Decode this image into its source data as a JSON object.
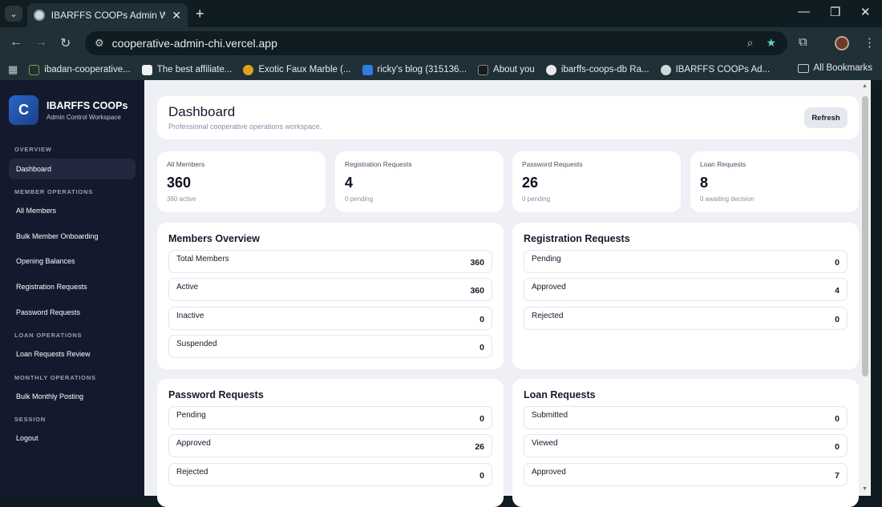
{
  "browser": {
    "tab_title": "IBARFFS COOPs Admin Workspace",
    "url": "cooperative-admin-chi.vercel.app",
    "bookmarks": [
      {
        "label": "ibadan-cooperative...",
        "color": "#2b2b2b"
      },
      {
        "label": "The best affiliate...",
        "color": "#f0f0f0"
      },
      {
        "label": "Exotic Faux Marble (...",
        "color": "#e0a21a"
      },
      {
        "label": "ricky's blog (315136...",
        "color": "#2f7de1"
      },
      {
        "label": "About you",
        "color": "#1a1a1a"
      },
      {
        "label": "ibarffs-coops-db Ra...",
        "color": "#e8e8e8"
      },
      {
        "label": "IBARFFS COOPs Ad...",
        "color": "#cfd8dc"
      }
    ],
    "all_bookmarks": "All Bookmarks"
  },
  "sidebar": {
    "logo_letter": "C",
    "brand": "IBARFFS COOPs",
    "brand_sub": "Admin Control Workspace",
    "sections": {
      "overview": "OVERVIEW",
      "member_ops": "MEMBER OPERATIONS",
      "loan_ops": "LOAN OPERATIONS",
      "monthly_ops": "MONTHLY OPERATIONS",
      "session": "SESSION"
    },
    "items": {
      "dashboard": "Dashboard",
      "all_members": "All Members",
      "bulk_onboarding": "Bulk Member Onboarding",
      "opening_balances": "Opening Balances",
      "registration_requests": "Registration Requests",
      "password_requests": "Password Requests",
      "loan_requests_review": "Loan Requests Review",
      "bulk_monthly_posting": "Bulk Monthly Posting",
      "logout": "Logout"
    }
  },
  "header": {
    "title": "Dashboard",
    "subtitle": "Professional cooperative operations workspace.",
    "refresh": "Refresh"
  },
  "stats": [
    {
      "label": "All Members",
      "value": "360",
      "note": "360 active"
    },
    {
      "label": "Registration Requests",
      "value": "4",
      "note": "0 pending"
    },
    {
      "label": "Password Requests",
      "value": "26",
      "note": "0 pending"
    },
    {
      "label": "Loan Requests",
      "value": "8",
      "note": "0 awaiting decision"
    }
  ],
  "panels": {
    "members": {
      "title": "Members Overview",
      "rows": [
        {
          "label": "Total Members",
          "value": "360"
        },
        {
          "label": "Active",
          "value": "360"
        },
        {
          "label": "Inactive",
          "value": "0"
        },
        {
          "label": "Suspended",
          "value": "0"
        }
      ]
    },
    "registration": {
      "title": "Registration Requests",
      "rows": [
        {
          "label": "Pending",
          "value": "0"
        },
        {
          "label": "Approved",
          "value": "4"
        },
        {
          "label": "Rejected",
          "value": "0"
        }
      ]
    },
    "password": {
      "title": "Password Requests",
      "rows": [
        {
          "label": "Pending",
          "value": "0"
        },
        {
          "label": "Approved",
          "value": "26"
        },
        {
          "label": "Rejected",
          "value": "0"
        }
      ]
    },
    "loan": {
      "title": "Loan Requests",
      "rows": [
        {
          "label": "Submitted",
          "value": "0"
        },
        {
          "label": "Viewed",
          "value": "0"
        },
        {
          "label": "Approved",
          "value": "7"
        }
      ]
    }
  }
}
